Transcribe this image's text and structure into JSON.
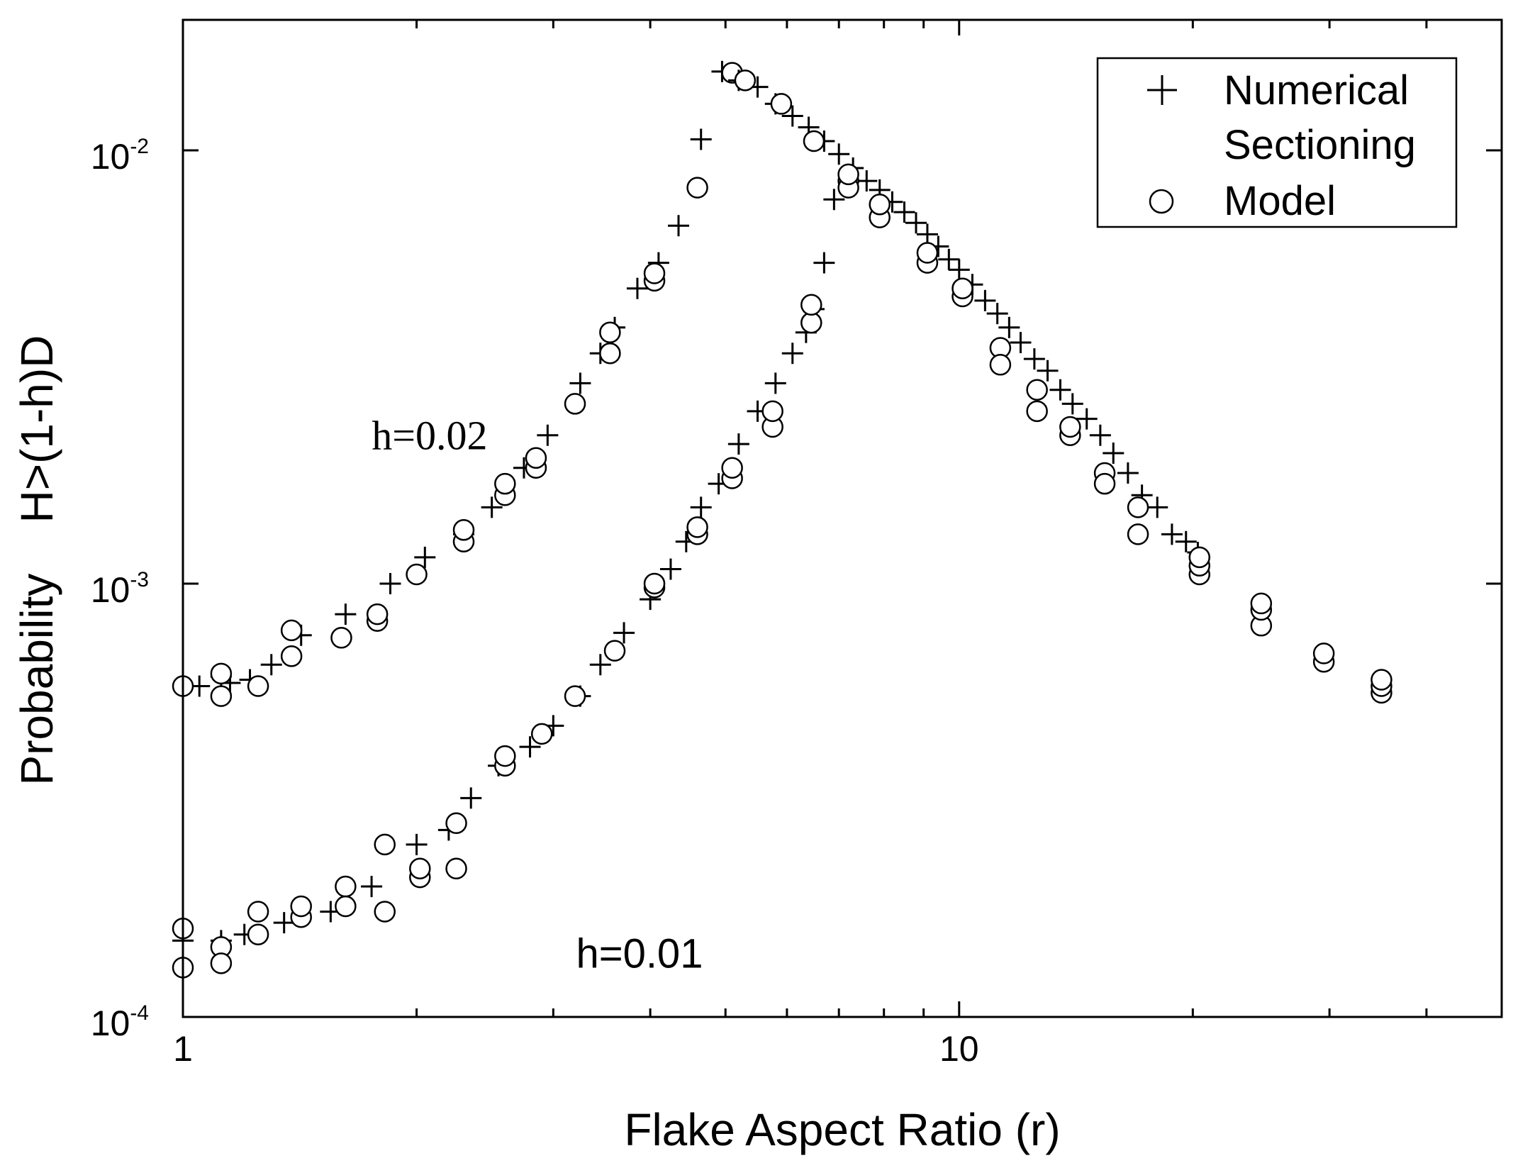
{
  "chart_data": {
    "type": "scatter",
    "xscale": "log",
    "yscale": "log",
    "xlim": [
      1,
      50
    ],
    "ylim": [
      0.0001,
      0.02
    ],
    "xlabel": "Flake Aspect Ratio (r)",
    "ylabel": "Probability    H>(1-h)D",
    "title": "",
    "grid": false,
    "legend_position": "top-right",
    "x_tick_labels": [
      {
        "value": 1,
        "label": "1"
      },
      {
        "value": 10,
        "label": "10"
      }
    ],
    "y_tick_labels": [
      {
        "value": 0.0001,
        "base": "10",
        "exp": "-4"
      },
      {
        "value": 0.001,
        "base": "10",
        "exp": "-3"
      },
      {
        "value": 0.01,
        "base": "10",
        "exp": "-2"
      }
    ],
    "legend": [
      {
        "marker": "plus",
        "lines": [
          "Numerical",
          "Sectioning"
        ]
      },
      {
        "marker": "circle",
        "lines": [
          "Model"
        ]
      }
    ],
    "annotations": [
      {
        "text": "h=0.02",
        "x": 2.4,
        "y": 0.0022,
        "style": "serif"
      },
      {
        "text": "h=0.01",
        "x": 4.4,
        "y": 0.00014,
        "style": "sans"
      }
    ],
    "series": [
      {
        "name": "Numerical Sectioning (h=0.02, rising)",
        "marker": "plus",
        "points": [
          [
            1.05,
            0.00058
          ],
          [
            1.12,
            0.00061
          ],
          [
            1.15,
            0.00059
          ],
          [
            1.22,
            0.0006
          ],
          [
            1.3,
            0.00065
          ],
          [
            1.42,
            0.00076
          ],
          [
            1.62,
            0.00085
          ],
          [
            1.85,
            0.001
          ],
          [
            2.05,
            0.00115
          ],
          [
            2.3,
            0.0013
          ],
          [
            2.5,
            0.0015
          ],
          [
            2.75,
            0.00185
          ],
          [
            2.95,
            0.0022
          ],
          [
            3.25,
            0.0029
          ],
          [
            3.45,
            0.0034
          ],
          [
            3.6,
            0.0039
          ],
          [
            3.85,
            0.0048
          ],
          [
            4.1,
            0.0055
          ],
          [
            4.35,
            0.0067
          ],
          [
            4.65,
            0.0106
          ],
          [
            4.95,
            0.0152
          ]
        ]
      },
      {
        "name": "Model (h=0.02, rising)",
        "marker": "circle",
        "points": [
          [
            1.0,
            0.00058
          ],
          [
            1.12,
            0.00055
          ],
          [
            1.12,
            0.00062
          ],
          [
            1.25,
            0.00058
          ],
          [
            1.38,
            0.00068
          ],
          [
            1.38,
            0.00078
          ],
          [
            1.6,
            0.00075
          ],
          [
            1.78,
            0.00082
          ],
          [
            1.78,
            0.00085
          ],
          [
            2.0,
            0.00105
          ],
          [
            2.3,
            0.00125
          ],
          [
            2.3,
            0.00133
          ],
          [
            2.6,
            0.0016
          ],
          [
            2.6,
            0.0017
          ],
          [
            2.85,
            0.00185
          ],
          [
            2.85,
            0.00195
          ],
          [
            3.2,
            0.0026
          ],
          [
            3.55,
            0.0034
          ],
          [
            3.55,
            0.0038
          ],
          [
            4.05,
            0.005
          ],
          [
            4.05,
            0.0052
          ],
          [
            4.6,
            0.0082
          ],
          [
            5.1,
            0.0151
          ]
        ]
      },
      {
        "name": "Numerical Sectioning (h=0.01, rising)",
        "marker": "plus",
        "points": [
          [
            1.0,
            0.00015
          ],
          [
            1.12,
            0.00015
          ],
          [
            1.2,
            0.000155
          ],
          [
            1.35,
            0.000165
          ],
          [
            1.55,
            0.000175
          ],
          [
            1.75,
            0.0002
          ],
          [
            2.0,
            0.00025
          ],
          [
            2.2,
            0.00027
          ],
          [
            2.35,
            0.00032
          ],
          [
            2.55,
            0.00038
          ],
          [
            2.8,
            0.00042
          ],
          [
            3.0,
            0.00047
          ],
          [
            3.25,
            0.00055
          ],
          [
            3.45,
            0.00065
          ],
          [
            3.7,
            0.00077
          ],
          [
            4.0,
            0.00092
          ],
          [
            4.25,
            0.00108
          ],
          [
            4.45,
            0.00125
          ],
          [
            4.65,
            0.0015
          ],
          [
            4.9,
            0.0017
          ],
          [
            5.2,
            0.0021
          ],
          [
            5.5,
            0.0025
          ],
          [
            5.8,
            0.0029
          ],
          [
            6.1,
            0.0034
          ],
          [
            6.35,
            0.0038
          ],
          [
            6.5,
            0.0043
          ],
          [
            6.7,
            0.0055
          ],
          [
            6.9,
            0.0077
          ]
        ]
      },
      {
        "name": "Model (h=0.01, rising)",
        "marker": "circle",
        "points": [
          [
            1.0,
            0.00016
          ],
          [
            1.0,
            0.00013
          ],
          [
            1.12,
            0.000145
          ],
          [
            1.12,
            0.000133
          ],
          [
            1.25,
            0.000155
          ],
          [
            1.25,
            0.000175
          ],
          [
            1.42,
            0.00017
          ],
          [
            1.42,
            0.00018
          ],
          [
            1.62,
            0.00018
          ],
          [
            1.62,
            0.0002
          ],
          [
            1.82,
            0.000175
          ],
          [
            1.82,
            0.00025
          ],
          [
            2.02,
            0.00021
          ],
          [
            2.02,
            0.00022
          ],
          [
            2.25,
            0.00022
          ],
          [
            2.25,
            0.00028
          ],
          [
            2.6,
            0.00038
          ],
          [
            2.6,
            0.0004
          ],
          [
            2.9,
            0.00045
          ],
          [
            3.2,
            0.00055
          ],
          [
            3.6,
            0.0007
          ],
          [
            4.05,
            0.00098
          ],
          [
            4.05,
            0.001
          ],
          [
            4.6,
            0.0013
          ],
          [
            4.6,
            0.00135
          ],
          [
            5.1,
            0.00175
          ],
          [
            5.1,
            0.00185
          ],
          [
            5.75,
            0.0023
          ],
          [
            5.75,
            0.0025
          ],
          [
            6.45,
            0.004
          ],
          [
            6.45,
            0.0044
          ]
        ]
      },
      {
        "name": "Numerical Sectioning (decreasing branch)",
        "marker": "plus",
        "points": [
          [
            5.2,
            0.0145
          ],
          [
            5.5,
            0.014
          ],
          [
            5.8,
            0.0128
          ],
          [
            6.1,
            0.012
          ],
          [
            6.4,
            0.0113
          ],
          [
            6.7,
            0.0105
          ],
          [
            7.0,
            0.0098
          ],
          [
            7.3,
            0.0091
          ],
          [
            7.6,
            0.0085
          ],
          [
            7.9,
            0.0081
          ],
          [
            8.2,
            0.0076
          ],
          [
            8.5,
            0.0072
          ],
          [
            8.8,
            0.0068
          ],
          [
            9.1,
            0.0064
          ],
          [
            9.4,
            0.006
          ],
          [
            9.7,
            0.0056
          ],
          [
            10.0,
            0.0053
          ],
          [
            10.4,
            0.0049
          ],
          [
            10.8,
            0.0045
          ],
          [
            11.2,
            0.0042
          ],
          [
            11.6,
            0.0039
          ],
          [
            12.0,
            0.0036
          ],
          [
            12.5,
            0.0033
          ],
          [
            13.0,
            0.0031
          ],
          [
            13.5,
            0.0028
          ],
          [
            14.0,
            0.0026
          ],
          [
            14.6,
            0.0024
          ],
          [
            15.2,
            0.0022
          ],
          [
            15.8,
            0.002
          ],
          [
            16.5,
            0.0018
          ],
          [
            17.2,
            0.0016
          ],
          [
            18.0,
            0.0015
          ],
          [
            18.8,
            0.0013
          ],
          [
            19.6,
            0.00125
          ],
          [
            20.3,
            0.00118
          ]
        ]
      },
      {
        "name": "Model (decreasing branch)",
        "marker": "circle",
        "points": [
          [
            5.3,
            0.0145
          ],
          [
            5.9,
            0.0128
          ],
          [
            6.5,
            0.0105
          ],
          [
            7.2,
            0.0085
          ],
          [
            7.2,
            0.0082
          ],
          [
            7.2,
            0.0088
          ],
          [
            7.9,
            0.007
          ],
          [
            7.9,
            0.0075
          ],
          [
            9.1,
            0.0055
          ],
          [
            9.1,
            0.0058
          ],
          [
            10.1,
            0.0046
          ],
          [
            10.1,
            0.0048
          ],
          [
            11.3,
            0.0035
          ],
          [
            11.3,
            0.0032
          ],
          [
            12.6,
            0.0028
          ],
          [
            12.6,
            0.0025
          ],
          [
            13.9,
            0.0022
          ],
          [
            13.9,
            0.0023
          ],
          [
            15.4,
            0.0018
          ],
          [
            15.4,
            0.0017
          ],
          [
            17.0,
            0.0015
          ],
          [
            17.0,
            0.0013
          ],
          [
            20.4,
            0.00105
          ],
          [
            20.4,
            0.0011
          ],
          [
            20.4,
            0.00115
          ],
          [
            24.5,
            0.0008
          ],
          [
            24.5,
            0.00087
          ],
          [
            24.5,
            0.0009
          ],
          [
            29.5,
            0.00066
          ],
          [
            29.5,
            0.00069
          ],
          [
            35.0,
            0.00056
          ],
          [
            35.0,
            0.00058
          ],
          [
            35.0,
            0.0006
          ]
        ]
      }
    ]
  }
}
